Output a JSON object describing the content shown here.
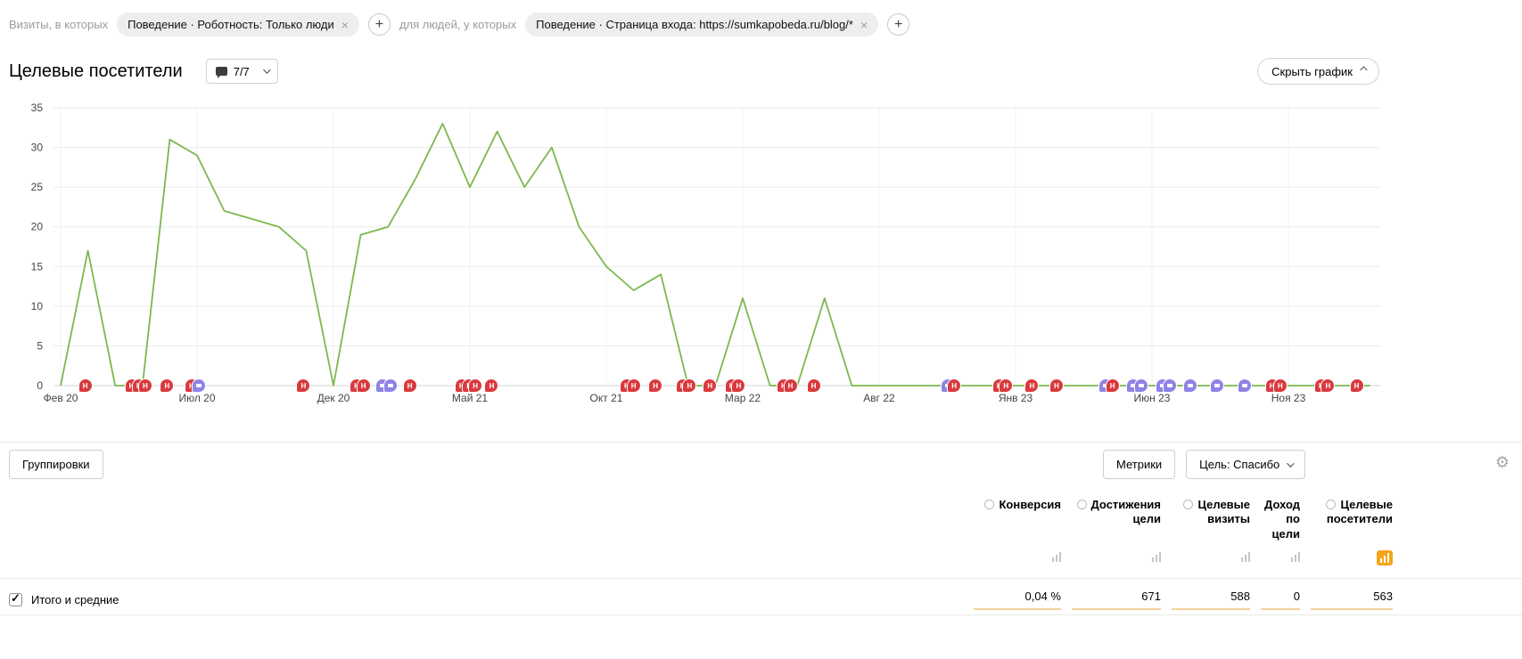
{
  "filter_bar": {
    "prefix": "Визиты, в которых",
    "chip1": "Поведение · Роботность: Только люди",
    "joiner": "для людей, у которых",
    "chip2": "Поведение · Страница входа: https://sumkapobeda.ru/blog/*",
    "close_icon": "×",
    "plus_icon": "+"
  },
  "header": {
    "title": "Целевые посетители",
    "comments": "7/7",
    "hide_chart": "Скрыть график"
  },
  "chart_data": {
    "type": "line",
    "title": "Целевые посетители",
    "series_name": "Целевые посетители",
    "color": "#7cb84e",
    "ylim": [
      0,
      35
    ],
    "yticks": [
      0,
      5,
      10,
      15,
      20,
      25,
      30,
      35
    ],
    "x_labels": [
      "Фев 20",
      "Июл 20",
      "Дек 20",
      "Май 21",
      "Окт 21",
      "Мар 22",
      "Авг 22",
      "Янв 23",
      "Июн 23",
      "Ноя 23"
    ],
    "x_label_step": 5,
    "x_unit": "month",
    "x_start": "2020-02",
    "values": [
      0,
      17,
      0,
      0,
      31,
      29,
      22,
      21,
      20,
      17,
      0,
      19,
      20,
      26,
      33,
      25,
      32,
      25,
      30,
      20,
      15,
      12,
      14,
      0,
      0,
      11,
      0,
      0,
      11,
      0,
      0,
      0,
      0,
      0,
      0,
      0,
      0,
      0,
      0,
      0,
      0,
      0,
      0,
      0,
      0,
      0,
      0,
      0,
      0
    ],
    "grid": true,
    "legend": "none",
    "marker_red_glyph": "Н",
    "markers": [
      {
        "i": 0.9,
        "c": "r"
      },
      {
        "i": 2.6,
        "c": "r"
      },
      {
        "i": 2.87,
        "c": "r"
      },
      {
        "i": 3.1,
        "c": "r"
      },
      {
        "i": 3.9,
        "c": "r"
      },
      {
        "i": 4.8,
        "c": "r"
      },
      {
        "i": 5.07,
        "c": "p"
      },
      {
        "i": 8.9,
        "c": "r"
      },
      {
        "i": 10.85,
        "c": "r"
      },
      {
        "i": 11.1,
        "c": "r"
      },
      {
        "i": 11.8,
        "c": "p"
      },
      {
        "i": 12.1,
        "c": "p"
      },
      {
        "i": 12.8,
        "c": "r"
      },
      {
        "i": 14.7,
        "c": "r"
      },
      {
        "i": 14.97,
        "c": "r"
      },
      {
        "i": 15.2,
        "c": "r"
      },
      {
        "i": 15.8,
        "c": "r"
      },
      {
        "i": 20.75,
        "c": "r"
      },
      {
        "i": 21.0,
        "c": "r"
      },
      {
        "i": 21.8,
        "c": "r"
      },
      {
        "i": 22.8,
        "c": "r"
      },
      {
        "i": 23.05,
        "c": "r"
      },
      {
        "i": 23.8,
        "c": "r"
      },
      {
        "i": 24.6,
        "c": "r"
      },
      {
        "i": 24.85,
        "c": "r"
      },
      {
        "i": 26.5,
        "c": "r"
      },
      {
        "i": 26.75,
        "c": "r"
      },
      {
        "i": 27.6,
        "c": "r"
      },
      {
        "i": 32.5,
        "c": "p"
      },
      {
        "i": 32.75,
        "c": "r"
      },
      {
        "i": 34.4,
        "c": "r"
      },
      {
        "i": 34.65,
        "c": "r"
      },
      {
        "i": 35.6,
        "c": "r"
      },
      {
        "i": 36.5,
        "c": "r"
      },
      {
        "i": 38.3,
        "c": "p"
      },
      {
        "i": 38.55,
        "c": "r"
      },
      {
        "i": 39.3,
        "c": "p"
      },
      {
        "i": 39.6,
        "c": "p"
      },
      {
        "i": 40.4,
        "c": "p"
      },
      {
        "i": 40.65,
        "c": "p"
      },
      {
        "i": 41.4,
        "c": "p"
      },
      {
        "i": 42.4,
        "c": "p"
      },
      {
        "i": 43.4,
        "c": "p"
      },
      {
        "i": 44.4,
        "c": "r"
      },
      {
        "i": 44.7,
        "c": "r"
      },
      {
        "i": 46.2,
        "c": "r"
      },
      {
        "i": 46.45,
        "c": "r"
      },
      {
        "i": 47.5,
        "c": "r"
      }
    ]
  },
  "controls": {
    "groupings": "Группировки",
    "metrics": "Метрики",
    "goal": "Цель: Спасибо",
    "gear_icon": "⚙"
  },
  "table": {
    "columns": [
      {
        "label": "Конверсия",
        "value": "0,04 %"
      },
      {
        "label": "Достижения цели",
        "value": "671"
      },
      {
        "label": "Целевые визиты",
        "value": "588"
      },
      {
        "label": "Доход по цели",
        "value": "0"
      },
      {
        "label": "Целевые посетители",
        "value": "563"
      }
    ],
    "totals_label": "Итого и средние"
  }
}
